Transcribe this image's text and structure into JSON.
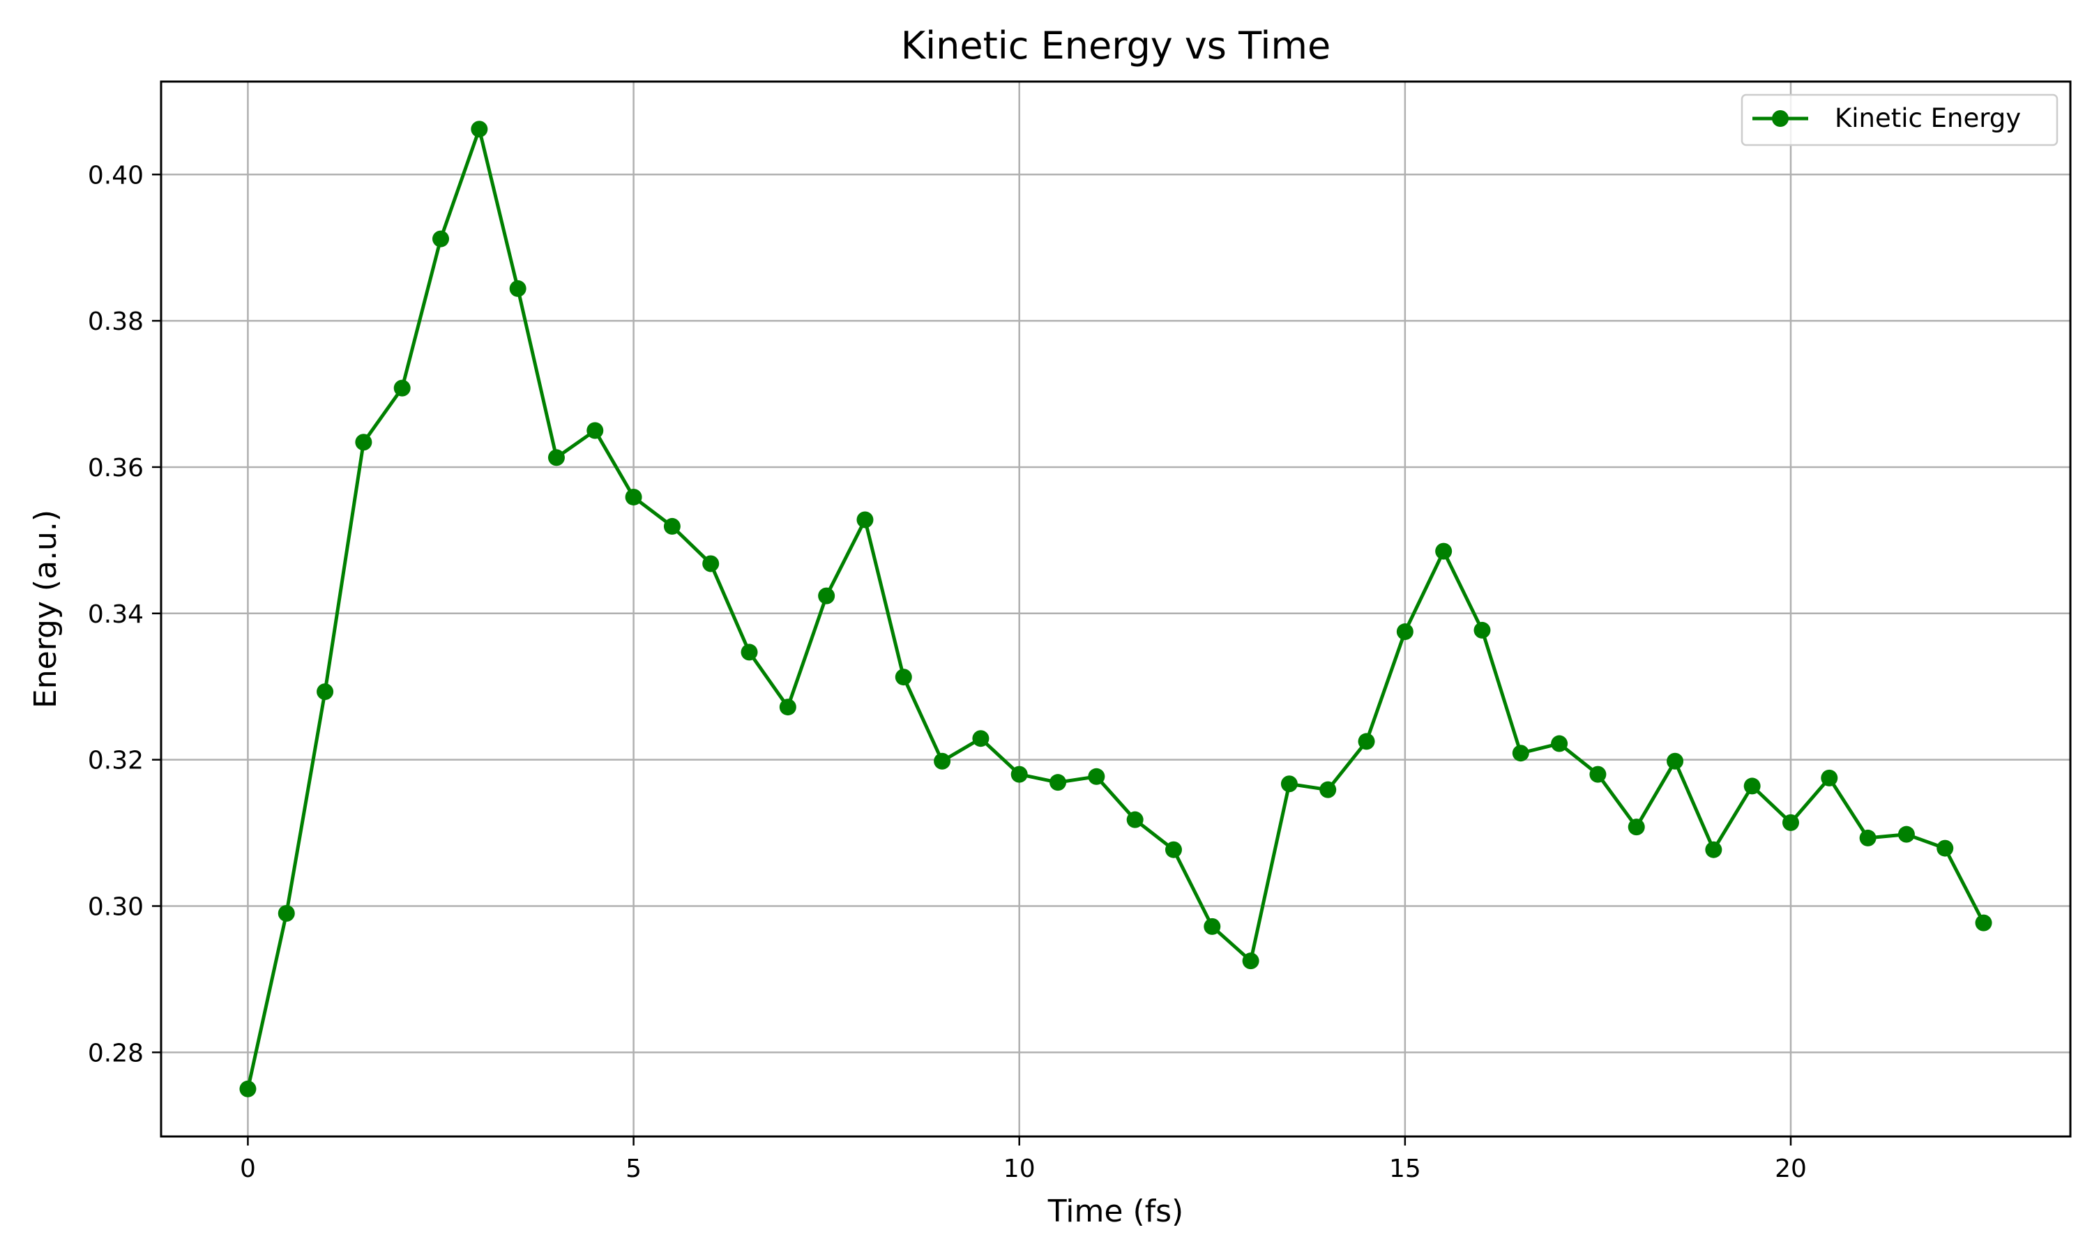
{
  "chart_data": {
    "type": "line",
    "title": "Kinetic Energy vs Time",
    "xlabel": "Time (fs)",
    "ylabel": "Energy (a.u.)",
    "xlim": [
      -1.125,
      23.625
    ],
    "ylim": [
      0.2685,
      0.4127
    ],
    "xticks": [
      0,
      5,
      10,
      15,
      20
    ],
    "xtick_labels": [
      "0",
      "5",
      "10",
      "15",
      "20"
    ],
    "yticks": [
      0.28,
      0.3,
      0.32,
      0.34,
      0.36,
      0.38,
      0.4
    ],
    "ytick_labels": [
      "0.28",
      "0.30",
      "0.32",
      "0.34",
      "0.36",
      "0.38",
      "0.40"
    ],
    "grid": true,
    "legend_position": "top-right",
    "series": [
      {
        "name": "Kinetic Energy",
        "color": "#008000",
        "marker": "circle",
        "x": [
          0,
          0.5,
          1,
          1.5,
          2,
          2.5,
          3,
          3.5,
          4,
          4.5,
          5,
          5.5,
          6,
          6.5,
          7,
          7.5,
          8,
          8.5,
          9,
          9.5,
          10,
          10.5,
          11,
          11.5,
          12,
          12.5,
          13,
          13.5,
          14,
          14.5,
          15,
          15.5,
          16,
          16.5,
          17,
          17.5,
          18,
          18.5,
          19,
          19.5,
          20,
          20.5,
          21,
          21.5,
          22,
          22.5
        ],
        "y": [
          0.275,
          0.299,
          0.3293,
          0.3634,
          0.3708,
          0.3912,
          0.4062,
          0.3844,
          0.3613,
          0.365,
          0.3559,
          0.3519,
          0.3468,
          0.3347,
          0.3272,
          0.3424,
          0.3528,
          0.3313,
          0.3198,
          0.3229,
          0.318,
          0.3169,
          0.3177,
          0.3118,
          0.3077,
          0.2972,
          0.2925,
          0.3167,
          0.3159,
          0.3225,
          0.3375,
          0.3485,
          0.3377,
          0.3209,
          0.3222,
          0.318,
          0.3108,
          0.3198,
          0.3077,
          0.3164,
          0.3114,
          0.3175,
          0.3093,
          0.3098,
          0.3079,
          0.2977
        ]
      }
    ]
  }
}
